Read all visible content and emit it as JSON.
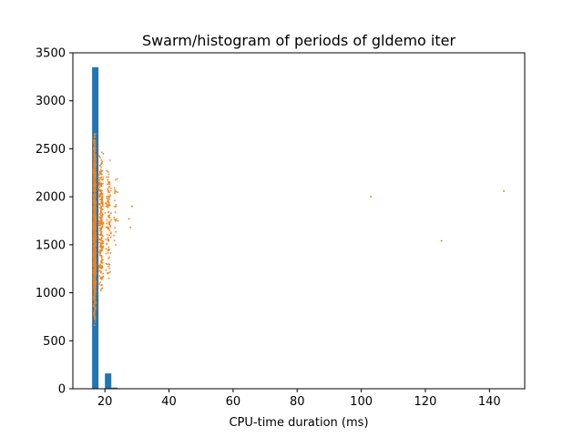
{
  "chart_data": {
    "type": "bar+scatter",
    "title": "Swarm/histogram of periods of gldemo iter",
    "xlabel": "CPU-time duration (ms)",
    "ylabel": "",
    "xlim": [
      10.0,
      151.0
    ],
    "ylim": [
      0,
      3500
    ],
    "xticks": [
      20,
      40,
      60,
      80,
      100,
      120,
      140
    ],
    "yticks": [
      0,
      500,
      1000,
      1500,
      2000,
      2500,
      3000,
      3500
    ],
    "grid": false,
    "colors": {
      "histogram": "#1f77b4",
      "swarm": "#ff7f0e"
    },
    "histogram": {
      "bin_width": 2.0,
      "bins": [
        {
          "x0": 16.0,
          "x1": 18.0,
          "count": 3350
        },
        {
          "x0": 18.0,
          "x1": 20.0,
          "count": 0
        },
        {
          "x0": 20.0,
          "x1": 22.0,
          "count": 160
        },
        {
          "x0": 22.0,
          "x1": 24.0,
          "count": 12
        },
        {
          "x0": 24.0,
          "x1": 26.0,
          "count": 3
        }
      ]
    },
    "swarm_outliers": [
      {
        "x": 103.0,
        "y": 2000
      },
      {
        "x": 125.0,
        "y": 1540
      },
      {
        "x": 144.5,
        "y": 2060
      },
      {
        "x": 28.5,
        "y": 1900
      },
      {
        "x": 27.5,
        "y": 1770
      },
      {
        "x": 28.0,
        "y": 1680
      }
    ],
    "swarm_clusters": [
      {
        "x_center": 16.8,
        "x_spread": 0.5,
        "y_min": 650,
        "y_max": 2700,
        "count": 1700
      },
      {
        "x_center": 18.8,
        "x_spread": 1.1,
        "y_min": 950,
        "y_max": 2550,
        "count": 260
      },
      {
        "x_center": 21.2,
        "x_spread": 1.4,
        "y_min": 1050,
        "y_max": 2450,
        "count": 110
      },
      {
        "x_center": 23.3,
        "x_spread": 0.9,
        "y_min": 1400,
        "y_max": 2250,
        "count": 25
      }
    ]
  }
}
